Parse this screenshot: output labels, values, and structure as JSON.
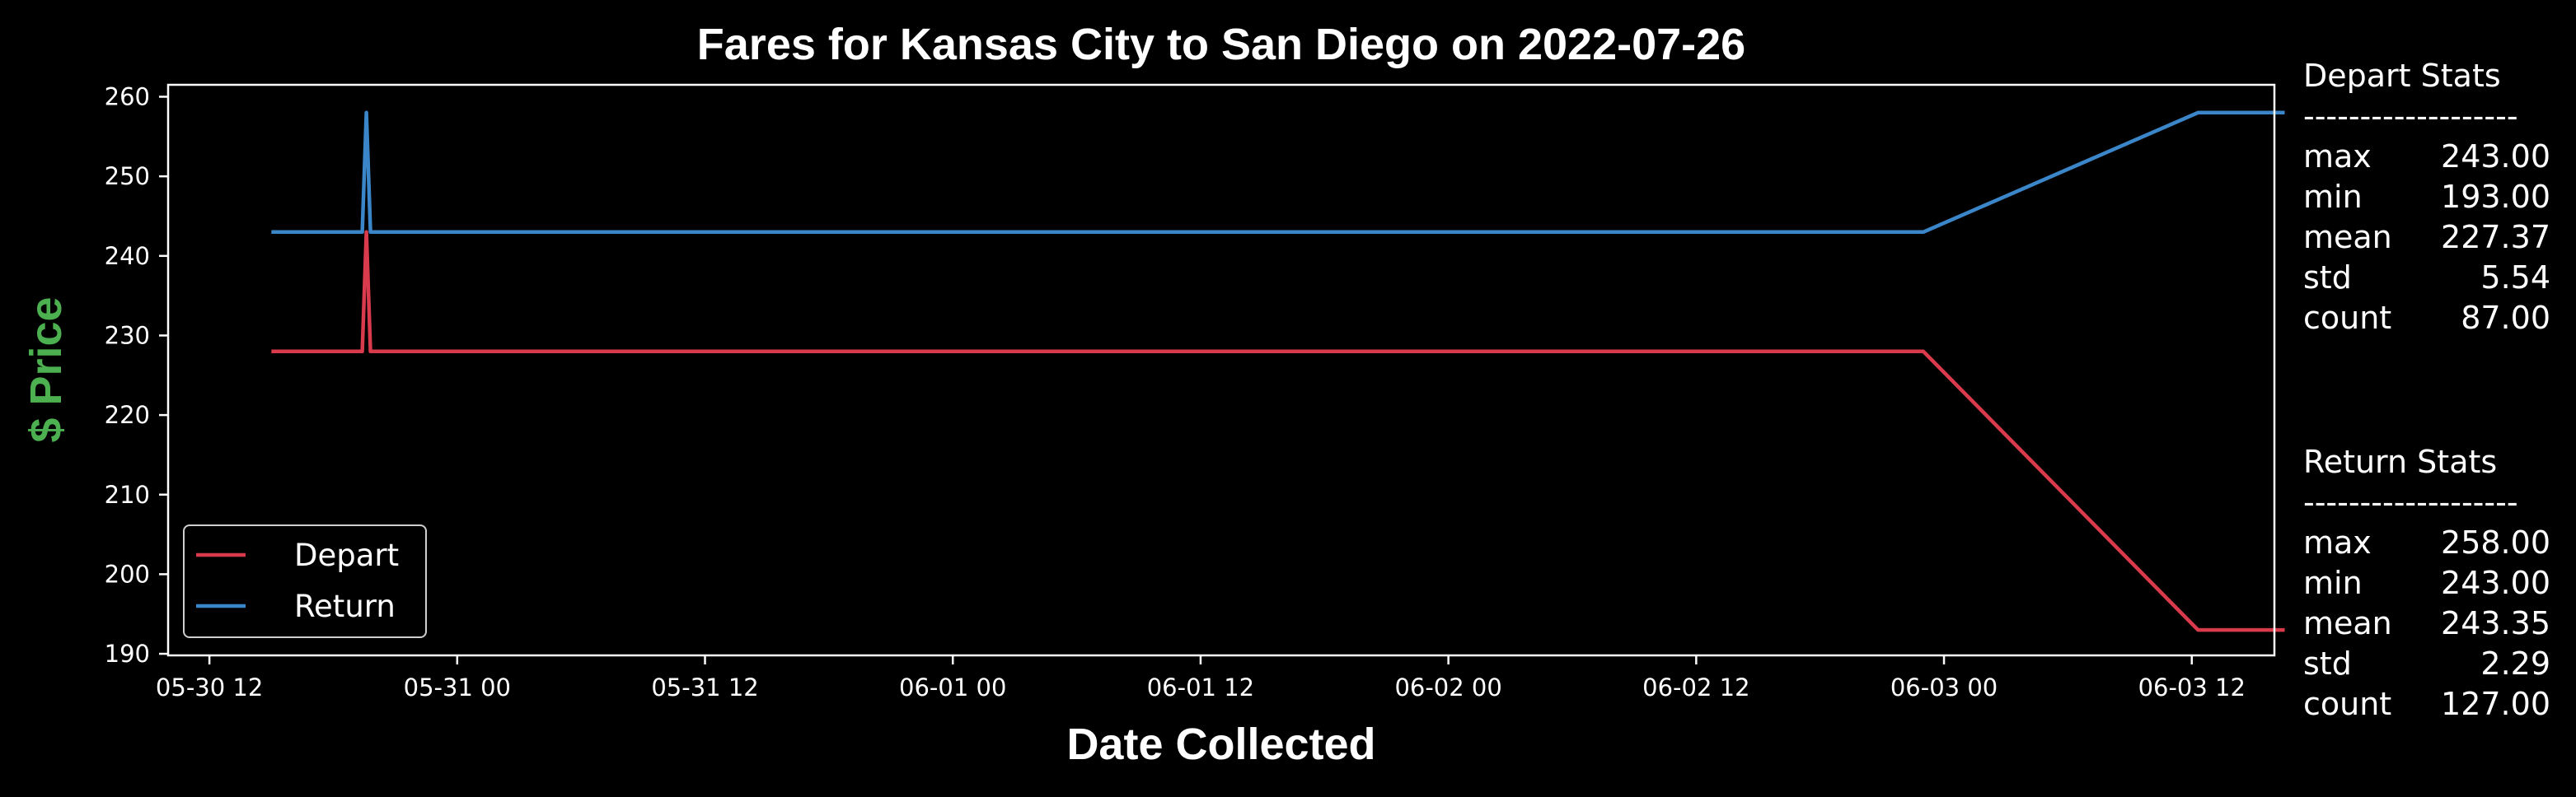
{
  "chart_data": {
    "type": "line",
    "title": "Fares for Kansas City to San Diego on 2022-07-26",
    "xlabel": "Date Collected",
    "ylabel": "$ Price",
    "x_ticks": [
      "05-30 12",
      "05-31 00",
      "05-31 12",
      "06-01 00",
      "06-01 12",
      "06-02 00",
      "06-02 12",
      "06-03 00",
      "06-03 12"
    ],
    "y_ticks": [
      190,
      200,
      210,
      220,
      230,
      240,
      250,
      260
    ],
    "xlim_hours": [
      -2,
      100
    ],
    "ylim": [
      189.8,
      261.5
    ],
    "legend_position": "lower-left",
    "grid": false,
    "series": [
      {
        "name": "Depart",
        "color": "#d93a4c",
        "points": [
          {
            "x": "05-30 15",
            "hours": 3,
            "y": 228
          },
          {
            "x": "05-30 19",
            "hours": 7.4,
            "y": 228
          },
          {
            "x": "05-30 19",
            "hours": 7.6,
            "y": 243
          },
          {
            "x": "05-30 19",
            "hours": 7.8,
            "y": 228
          },
          {
            "x": "06-02 23",
            "hours": 83,
            "y": 228
          },
          {
            "x": "06-03 13",
            "hours": 96.3,
            "y": 193
          },
          {
            "x": "06-03 17",
            "hours": 100.5,
            "y": 193
          }
        ]
      },
      {
        "name": "Return",
        "color": "#3a86c8",
        "points": [
          {
            "x": "05-30 15",
            "hours": 3,
            "y": 243
          },
          {
            "x": "05-30 19",
            "hours": 7.4,
            "y": 243
          },
          {
            "x": "05-30 19",
            "hours": 7.6,
            "y": 258
          },
          {
            "x": "05-30 19",
            "hours": 7.8,
            "y": 243
          },
          {
            "x": "06-02 23",
            "hours": 83,
            "y": 243
          },
          {
            "x": "06-03 13",
            "hours": 96.3,
            "y": 258
          },
          {
            "x": "06-03 17",
            "hours": 100.5,
            "y": 258
          }
        ]
      }
    ]
  },
  "colors": {
    "background": "#000000",
    "axes": "#ffffff",
    "text": "#ffffff",
    "ylabel": "#4caf50",
    "depart": "#d93a4c",
    "return": "#3a86c8"
  },
  "stats": {
    "depart": {
      "header": "Depart Stats",
      "divider": "-------------------",
      "rows": [
        {
          "label": "max",
          "value": "243.00"
        },
        {
          "label": "min",
          "value": "193.00"
        },
        {
          "label": "mean",
          "value": "227.37"
        },
        {
          "label": "std",
          "value": "5.54"
        },
        {
          "label": "count",
          "value": "87.00"
        }
      ]
    },
    "return": {
      "header": "Return Stats",
      "divider": "-------------------",
      "rows": [
        {
          "label": "max",
          "value": "258.00"
        },
        {
          "label": "min",
          "value": "243.00"
        },
        {
          "label": "mean",
          "value": "243.35"
        },
        {
          "label": "std",
          "value": "2.29"
        },
        {
          "label": "count",
          "value": "127.00"
        }
      ]
    }
  }
}
